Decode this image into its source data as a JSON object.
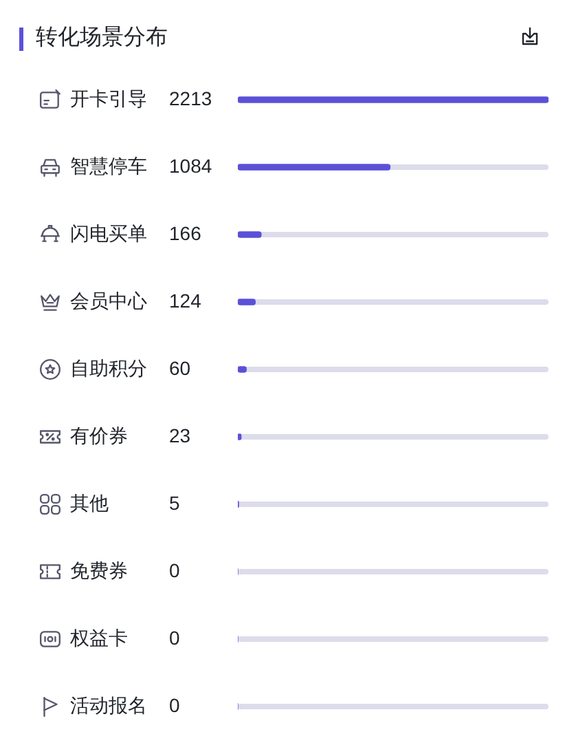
{
  "chart_data": {
    "type": "bar",
    "orientation": "horizontal",
    "title": "转化场景分布",
    "categories": [
      "开卡引导",
      "智慧停车",
      "闪电买单",
      "会员中心",
      "自助积分",
      "有价券",
      "其他",
      "免费券",
      "权益卡",
      "活动报名"
    ],
    "values": [
      2213,
      1084,
      166,
      124,
      60,
      23,
      5,
      0,
      0,
      0
    ],
    "color": "#5b51d8",
    "xlim": [
      0,
      2213
    ],
    "data_labels": true,
    "tick_labels": "y"
  }
}
